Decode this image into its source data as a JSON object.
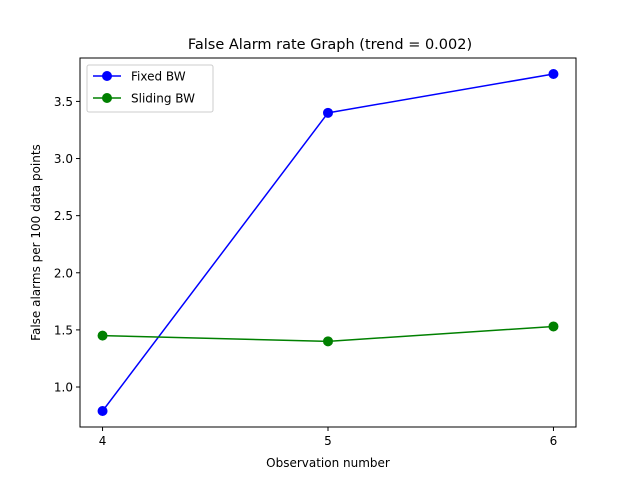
{
  "chart_data": {
    "type": "line",
    "title": "False Alarm rate Graph (trend = 0.002)",
    "xlabel": "Observation number",
    "ylabel": "False alarms per 100 data points",
    "x": [
      4,
      5,
      6
    ],
    "x_ticks": [
      "4",
      "5",
      "6"
    ],
    "y_ticks": [
      "1.0",
      "1.5",
      "2.0",
      "2.5",
      "3.0",
      "3.5"
    ],
    "xlim": [
      3.9,
      6.1
    ],
    "ylim": [
      0.65,
      3.88
    ],
    "grid": false,
    "legend_position": "top-left",
    "series": [
      {
        "name": "Fixed BW",
        "color": "#0000ff",
        "marker": "circle",
        "values": [
          0.79,
          3.4,
          3.74
        ]
      },
      {
        "name": "Sliding BW",
        "color": "#008000",
        "marker": "circle",
        "values": [
          1.45,
          1.4,
          1.53
        ]
      }
    ]
  }
}
